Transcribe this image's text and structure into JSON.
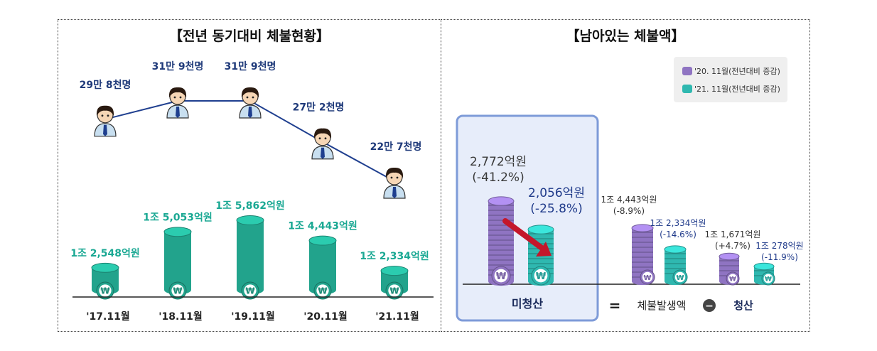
{
  "left_title": "【전년 동기대비 체불현황】",
  "right_title": "【남아있는 체불액】",
  "coin_symbol": "₩",
  "chart_data": [
    {
      "type": "line",
      "title": "【전년 동기대비 체불현황】",
      "categories": [
        "'17.11월",
        "'18.11월",
        "'19.11월",
        "'20.11월",
        "'21.11월"
      ],
      "series": [
        {
          "values": [
            298000,
            319000,
            319000,
            272000,
            227000
          ],
          "labels": [
            "29만 8천명",
            "31만 9천명",
            "31만 9천명",
            "27만 2천명",
            "22만 7천명"
          ]
        }
      ]
    },
    {
      "type": "bar",
      "categories": [
        "'17.11월",
        "'18.11월",
        "'19.11월",
        "'20.11월",
        "'21.11월"
      ],
      "series": [
        {
          "values": [
            12548,
            15053,
            15862,
            14443,
            12334
          ],
          "labels": [
            "1조 2,548억원",
            "1조 5,053억원",
            "1조 5,862억원",
            "1조 4,443억원",
            "1조 2,334억원"
          ]
        }
      ]
    },
    {
      "type": "bar",
      "title": "【남아있는 체불액】",
      "categories": [
        "미청산",
        "체불발생액",
        "청산"
      ],
      "operators": [
        "=",
        "−"
      ],
      "legend": [
        "'20. 11월(전년대비 증감)",
        "'21. 11월(전년대비 증감)"
      ],
      "series": [
        {
          "name": "'20. 11월(전년대비 증감)",
          "values": [
            2772,
            14443,
            11671
          ],
          "labels": [
            "2,772억원",
            "1조 4,443억원",
            "1조 1,671억원"
          ],
          "changes": [
            "(-41.2%)",
            "(-8.9%)",
            "(+4.7%)"
          ]
        },
        {
          "name": "'21. 11월(전년대비 증감)",
          "values": [
            2056,
            12334,
            10278
          ],
          "labels": [
            "2,056억원",
            "1조 2,334억원",
            "1조 278억원"
          ],
          "changes": [
            "(-25.8%)",
            "(-14.6%)",
            "(-11.9%)"
          ]
        }
      ]
    }
  ],
  "colors": {
    "line": "#1f3f8f",
    "label_blue": "#1f3a7a",
    "label_teal": "#1aa893",
    "teal_bar": "#22a38c",
    "purple": "#8f74c2",
    "cyan": "#2fb8b0",
    "highlight_border": "#7e9bd8",
    "highlight_fill": "#e7edfa",
    "arrow": "#c4172b"
  }
}
